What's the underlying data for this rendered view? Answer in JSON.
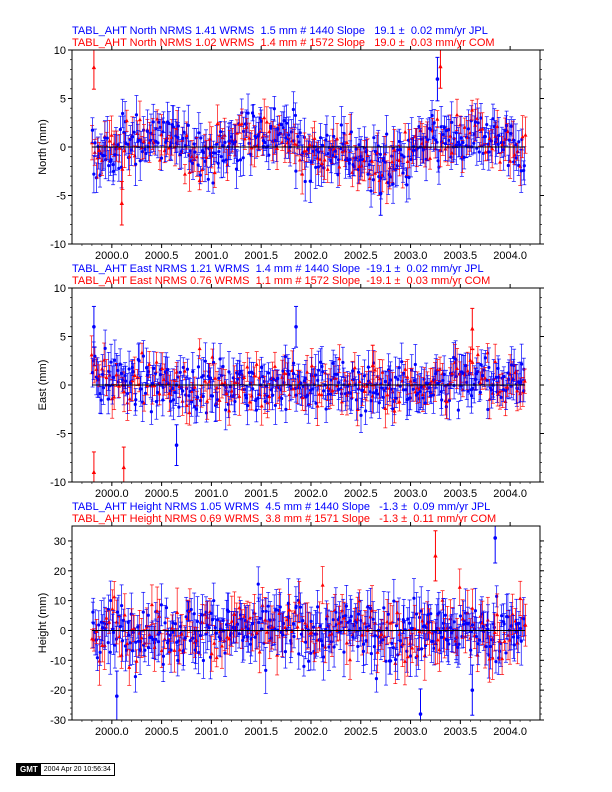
{
  "gmt": {
    "logo": "GMT",
    "timestamp": "2004 Apr 20 10:56:34"
  },
  "chart_data": [
    {
      "type": "scatter",
      "titles": [
        "TABL_AHT North NRMS 1.41 WRMS  1.5 mm # 1440 Slope   19.1 ±  0.02 mm/yr JPL",
        "TABL_AHT North NRMS 1.02 WRMS  1.4 mm # 1572 Slope   19.0 ±  0.03 mm/yr COM"
      ],
      "ylabel": "North (mm)",
      "xlim": [
        1999.6,
        2004.3
      ],
      "ylim": [
        -10,
        10
      ],
      "yticks": [
        -10,
        -5,
        0,
        5,
        10
      ],
      "xticks": [
        "2000.0",
        "2000.5",
        "2001.0",
        "2001.5",
        "2002.0",
        "2002.5",
        "2003.0",
        "2003.5",
        "2004.0"
      ],
      "grid": false,
      "series": [
        {
          "name": "JPL",
          "color": "#0000ff",
          "count": 1440
        },
        {
          "name": "COM",
          "color": "#ff0000",
          "count": 1572
        }
      ],
      "envelope": {
        "x": [
          1999.8,
          2000.0,
          2000.25,
          2000.5,
          2000.75,
          2001.0,
          2001.25,
          2001.5,
          2001.75,
          2002.0,
          2002.25,
          2002.5,
          2002.75,
          2003.0,
          2003.25,
          2003.5,
          2003.75,
          2004.0,
          2004.15
        ],
        "y": [
          -1.0,
          -0.5,
          0.8,
          1.2,
          0.0,
          -0.8,
          0.8,
          1.5,
          1.0,
          -0.5,
          -0.5,
          -1.0,
          -2.0,
          -0.8,
          0.5,
          0.6,
          1.0,
          0.3,
          -0.2
        ]
      },
      "spread": 1.6,
      "outliers": [
        {
          "x": 1999.82,
          "y": 8.2,
          "series": "COM"
        },
        {
          "x": 2000.1,
          "y": -5.8,
          "series": "COM"
        },
        {
          "x": 2003.3,
          "y": 8.3,
          "series": "COM"
        },
        {
          "x": 2003.27,
          "y": 7.0,
          "series": "JPL"
        },
        {
          "x": 2002.7,
          "y": -4.8,
          "series": "JPL"
        }
      ]
    },
    {
      "type": "scatter",
      "titles": [
        "TABL_AHT East NRMS 1.21 WRMS  1.4 mm # 1440 Slope  -19.1 ±  0.02 mm/yr JPL",
        "TABL_AHT East NRMS 0.76 WRMS  1.1 mm # 1572 Slope  -19.1 ±  0.03 mm/yr COM"
      ],
      "ylabel": "East (mm)",
      "xlim": [
        1999.6,
        2004.3
      ],
      "ylim": [
        -10,
        10
      ],
      "yticks": [
        -10,
        -5,
        0,
        5,
        10
      ],
      "xticks": [
        "2000.0",
        "2000.5",
        "2001.0",
        "2001.5",
        "2002.0",
        "2002.5",
        "2003.0",
        "2003.5",
        "2004.0"
      ],
      "grid": false,
      "series": [
        {
          "name": "JPL",
          "color": "#0000ff",
          "count": 1440
        },
        {
          "name": "COM",
          "color": "#ff0000",
          "count": 1572
        }
      ],
      "envelope": {
        "x": [
          1999.8,
          2000.0,
          2000.5,
          2001.0,
          2001.5,
          2002.0,
          2002.5,
          2003.0,
          2003.5,
          2004.0,
          2004.15
        ],
        "y": [
          2.0,
          0.5,
          0.0,
          0.0,
          0.0,
          0.0,
          0.0,
          0.0,
          0.5,
          0.5,
          0.3
        ]
      },
      "spread": 1.5,
      "outliers": [
        {
          "x": 1999.82,
          "y": 6.0,
          "series": "JPL"
        },
        {
          "x": 1999.82,
          "y": -9.0,
          "series": "COM"
        },
        {
          "x": 2000.12,
          "y": -8.5,
          "series": "COM"
        },
        {
          "x": 2000.65,
          "y": -6.2,
          "series": "JPL"
        },
        {
          "x": 2001.85,
          "y": 6.0,
          "series": "JPL"
        },
        {
          "x": 2002.62,
          "y": 2.0,
          "series": "COM"
        },
        {
          "x": 2003.62,
          "y": 5.8,
          "series": "COM"
        }
      ]
    },
    {
      "type": "scatter",
      "titles": [
        "TABL_AHT Height NRMS 1.05 WRMS  4.5 mm # 1440 Slope   -1.3 ±  0.09 mm/yr JPL",
        "TABL_AHT Height NRMS 0.69 WRMS  3.8 mm # 1571 Slope   -1.3 ±  0.11 mm/yr COM"
      ],
      "ylabel": "Height (mm)",
      "xlim": [
        1999.6,
        2004.3
      ],
      "ylim": [
        -30,
        35
      ],
      "yticks": [
        -30,
        -20,
        -10,
        0,
        10,
        20,
        30
      ],
      "xticks": [
        "2000.0",
        "2000.5",
        "2001.0",
        "2001.5",
        "2002.0",
        "2002.5",
        "2003.0",
        "2003.5",
        "2004.0"
      ],
      "grid": false,
      "series": [
        {
          "name": "JPL",
          "color": "#0000ff",
          "count": 1440
        },
        {
          "name": "COM",
          "color": "#ff0000",
          "count": 1571
        }
      ],
      "envelope": {
        "x": [
          1999.8,
          2004.15
        ],
        "y": [
          0.0,
          0.0
        ]
      },
      "spread": 6.0,
      "outliers": [
        {
          "x": 2003.85,
          "y": 31.0,
          "series": "JPL"
        },
        {
          "x": 2000.05,
          "y": -22.0,
          "series": "JPL"
        },
        {
          "x": 2003.1,
          "y": -28.0,
          "series": "JPL"
        },
        {
          "x": 2003.62,
          "y": -20.0,
          "series": "JPL"
        },
        {
          "x": 2003.25,
          "y": 25.0,
          "series": "COM"
        }
      ]
    }
  ]
}
